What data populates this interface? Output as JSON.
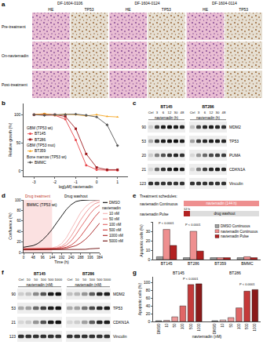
{
  "panel_labels": [
    "a",
    "b",
    "c",
    "d",
    "e",
    "f",
    "g"
  ],
  "histology": {
    "samples": [
      "DF-1604-0106",
      "DF-1604-0124",
      "DF-1604-0114"
    ],
    "stains": [
      "HE",
      "TP53"
    ],
    "rows": [
      "Pre-treatment",
      "On-navtemadin",
      "Post-treatment"
    ]
  },
  "chart_data": [
    {
      "type": "line",
      "x_label": "log[μM] navtemadin",
      "y_label": "Relative growth (%)",
      "x": [
        -3,
        -2.5,
        -2,
        -1.5,
        -1,
        -0.5,
        0,
        0.5,
        1
      ],
      "xlim": [
        -3.5,
        1.5
      ],
      "xticks": [
        -3,
        -2,
        -1,
        0,
        1
      ],
      "ylim": [
        -10,
        120
      ],
      "yticks": [
        0,
        50,
        100
      ],
      "series": [
        {
          "name": "BT145",
          "group": "GBM (TP53 wt)",
          "color": "#e8474c",
          "marker": "circle",
          "values": [
            100,
            100,
            99,
            92,
            55,
            10,
            2,
            1,
            1
          ]
        },
        {
          "name": "BT286",
          "group": "GBM (TP53 wt)",
          "color": "#9e1b1f",
          "marker": "square",
          "values": [
            100,
            101,
            100,
            97,
            75,
            30,
            6,
            2,
            2
          ]
        },
        {
          "name": "BT359",
          "group": "GBM (TP53 mut)",
          "color": "#f5a623",
          "marker": "triangle-up",
          "values": [
            100,
            102,
            99,
            101,
            100,
            98,
            100,
            97,
            96
          ]
        },
        {
          "name": "BMMC",
          "group": "Bone marrow (TP53 wt)",
          "color": "#555555",
          "marker": "diamond",
          "values": [
            100,
            99,
            100,
            100,
            101,
            99,
            96,
            82,
            45
          ]
        }
      ]
    },
    {
      "type": "line",
      "title": "BMMC (TP53 wt)",
      "x_label": "Time (h)",
      "y_label": "Confluence (%)",
      "period_labels": [
        "Drug treatment",
        "Drug washout"
      ],
      "treatment_period": [
        0,
        144
      ],
      "x": [
        0,
        24,
        48,
        72,
        96,
        120,
        144,
        168,
        192,
        216,
        240,
        264,
        288,
        312,
        336,
        360,
        384
      ],
      "xlim": [
        0,
        384
      ],
      "xticks": [
        0,
        48,
        96,
        144,
        192,
        240,
        288,
        336,
        384
      ],
      "ylim": [
        0,
        100
      ],
      "yticks": [
        0,
        20,
        40,
        60,
        80,
        100
      ],
      "series": [
        {
          "name": "DMSO",
          "color": "#000000",
          "values": [
            10,
            11,
            13,
            17,
            24,
            33,
            44,
            57,
            70,
            82,
            91,
            97,
            99,
            100,
            100,
            100,
            100
          ]
        },
        {
          "name": "10 nM",
          "group": "navtemadin",
          "color": "#f4b3b3",
          "values": [
            8,
            8,
            8,
            8,
            8,
            8,
            9,
            11,
            17,
            28,
            44,
            61,
            76,
            87,
            94,
            98,
            99
          ]
        },
        {
          "name": "50 nM",
          "group": "navtemadin",
          "color": "#ec8c8c",
          "values": [
            7,
            7,
            7,
            7,
            7,
            7,
            8,
            9,
            12,
            19,
            31,
            46,
            62,
            75,
            86,
            93,
            96
          ]
        },
        {
          "name": "100 nM",
          "group": "navtemadin",
          "color": "#e06060",
          "values": [
            7,
            7,
            7,
            7,
            7,
            7,
            7,
            8,
            10,
            14,
            22,
            34,
            48,
            62,
            74,
            84,
            90
          ]
        },
        {
          "name": "500 nM",
          "group": "navtemadin",
          "color": "#cc3333",
          "values": [
            6,
            6,
            6,
            6,
            6,
            6,
            6,
            7,
            8,
            10,
            14,
            21,
            31,
            43,
            56,
            68,
            78
          ]
        },
        {
          "name": "1000 nM",
          "group": "navtemadin",
          "color": "#a51c1c",
          "values": [
            6,
            6,
            6,
            6,
            6,
            6,
            6,
            6,
            7,
            8,
            10,
            13,
            18,
            25,
            34,
            45,
            56
          ]
        },
        {
          "name": "5000 nM",
          "group": "navtemadin",
          "color": "#6b0a0a",
          "values": [
            5,
            5,
            5,
            5,
            5,
            5,
            5,
            5,
            5,
            5,
            5,
            6,
            6,
            6,
            7,
            7,
            8
          ]
        }
      ]
    },
    {
      "type": "bar",
      "y_label": "Apoptotic cells (%)",
      "categories": [
        "BT145",
        "BT286",
        "BT359",
        "BMMC"
      ],
      "ylim": [
        0,
        40
      ],
      "yticks": [
        0,
        10,
        20,
        30,
        40
      ],
      "legend": "upper right",
      "series": [
        {
          "name": "DMSO Continuous",
          "color": "#9e9e9e",
          "values": [
            3,
            2,
            2,
            2
          ]
        },
        {
          "name": "navtemadin Continuous",
          "color": "#ee8f8f",
          "values": [
            32,
            30,
            2,
            3
          ]
        },
        {
          "name": "navtemadin Pulse",
          "color": "#b22222",
          "values": [
            15,
            9,
            2,
            2
          ]
        }
      ],
      "annotations": [
        {
          "text": "P < 0.0001",
          "category": "BT145",
          "y": 35
        },
        {
          "text": "P < 0.0001",
          "category": "BT286",
          "y": 33
        }
      ]
    },
    {
      "type": "bar",
      "x_label": "navtemadin (nM)",
      "y_label": "Apoptotic cells (%)",
      "categories": [
        "DMSO",
        "10",
        "50",
        "100",
        "500",
        "1000"
      ],
      "colors": [
        "#9e9e9e",
        "#f6c6c6",
        "#ee9a9a",
        "#e06666",
        "#c43a3a",
        "#8b1a1a"
      ],
      "ylim": [
        0,
        115
      ],
      "yticks": [
        0,
        20,
        40,
        60,
        80,
        100
      ],
      "series": [
        {
          "name": "BT145",
          "values": [
            2,
            3,
            12,
            40,
            95,
            97
          ]
        },
        {
          "name": "BT286",
          "values": [
            2,
            4,
            10,
            35,
            78,
            82
          ]
        }
      ],
      "annotations": [
        {
          "text": "P < 0.0001",
          "series": "BT145",
          "category": "500",
          "y": 100
        },
        {
          "text": "P < 0.0001",
          "series": "BT286",
          "category": "500",
          "y": 86
        }
      ]
    }
  ],
  "schedule": {
    "title": "Treatment schedules:",
    "total_hours": 144,
    "rows": [
      {
        "label": "navtemadin Continuous",
        "drug_hours": 144,
        "drug_text": "navtemadin (144 h)"
      },
      {
        "label": "navtemadin Pulse",
        "drug_hours": 12,
        "drug_text": "12 h",
        "washout_text": "drug washout"
      }
    ]
  },
  "blots": [
    {
      "lane_title": "navtemadin (h)",
      "lanes": [
        "Ctrl",
        "3",
        "6",
        "12",
        "30",
        "48"
      ],
      "cells": [
        "BT145",
        "BT286"
      ],
      "proteins": [
        {
          "name": "MDM2",
          "kda": 90,
          "intensity": [
            [
              0.15,
              0.8,
              0.95,
              1,
              0.95,
              0.9
            ],
            [
              0.2,
              0.75,
              0.9,
              0.95,
              0.9,
              0.85
            ]
          ]
        },
        {
          "name": "TP53",
          "kda": 53,
          "intensity": [
            [
              0.3,
              0.85,
              0.95,
              1,
              1,
              0.95
            ],
            [
              0.35,
              0.8,
              0.9,
              0.95,
              0.95,
              0.9
            ]
          ]
        },
        {
          "name": "PUMA",
          "kda": 20,
          "intensity": [
            [
              0.15,
              0.5,
              0.7,
              0.85,
              0.9,
              0.85
            ],
            [
              0.1,
              0.4,
              0.6,
              0.75,
              0.8,
              0.8
            ]
          ]
        },
        {
          "name": "CDKN1A",
          "kda": 21,
          "intensity": [
            [
              0.1,
              0.6,
              0.85,
              0.95,
              1,
              0.95
            ],
            [
              0.1,
              0.5,
              0.8,
              0.9,
              0.95,
              0.9
            ]
          ]
        },
        {
          "name": "Vinculin",
          "kda": 123,
          "intensity": [
            [
              0.85,
              0.85,
              0.85,
              0.85,
              0.85,
              0.85
            ],
            [
              0.85,
              0.85,
              0.85,
              0.85,
              0.85,
              0.85
            ]
          ]
        }
      ]
    },
    {
      "lane_title": "navtemadin (nM)",
      "lanes": [
        "Ctrl",
        "10",
        "50",
        "100",
        "500",
        "1000"
      ],
      "cells": [
        "BT145",
        "BT286"
      ],
      "proteins": [
        {
          "name": "MDM2",
          "kda": 90,
          "intensity": [
            [
              0.15,
              0.2,
              0.45,
              0.7,
              0.95,
              1
            ],
            [
              0.2,
              0.25,
              0.4,
              0.65,
              0.9,
              0.95
            ]
          ]
        },
        {
          "name": "TP53",
          "kda": 53,
          "intensity": [
            [
              0.3,
              0.35,
              0.6,
              0.8,
              0.95,
              1
            ],
            [
              0.3,
              0.35,
              0.55,
              0.75,
              0.9,
              0.95
            ]
          ]
        },
        {
          "name": "CDKN1A",
          "kda": 21,
          "intensity": [
            [
              0.1,
              0.15,
              0.4,
              0.7,
              0.95,
              1
            ],
            [
              0.1,
              0.15,
              0.35,
              0.65,
              0.9,
              0.95
            ]
          ]
        },
        {
          "name": "Vinculin",
          "kda": 123,
          "intensity": [
            [
              0.85,
              0.85,
              0.85,
              0.85,
              0.85,
              0.85
            ],
            [
              0.85,
              0.85,
              0.85,
              0.85,
              0.85,
              0.85
            ]
          ]
        }
      ]
    }
  ]
}
